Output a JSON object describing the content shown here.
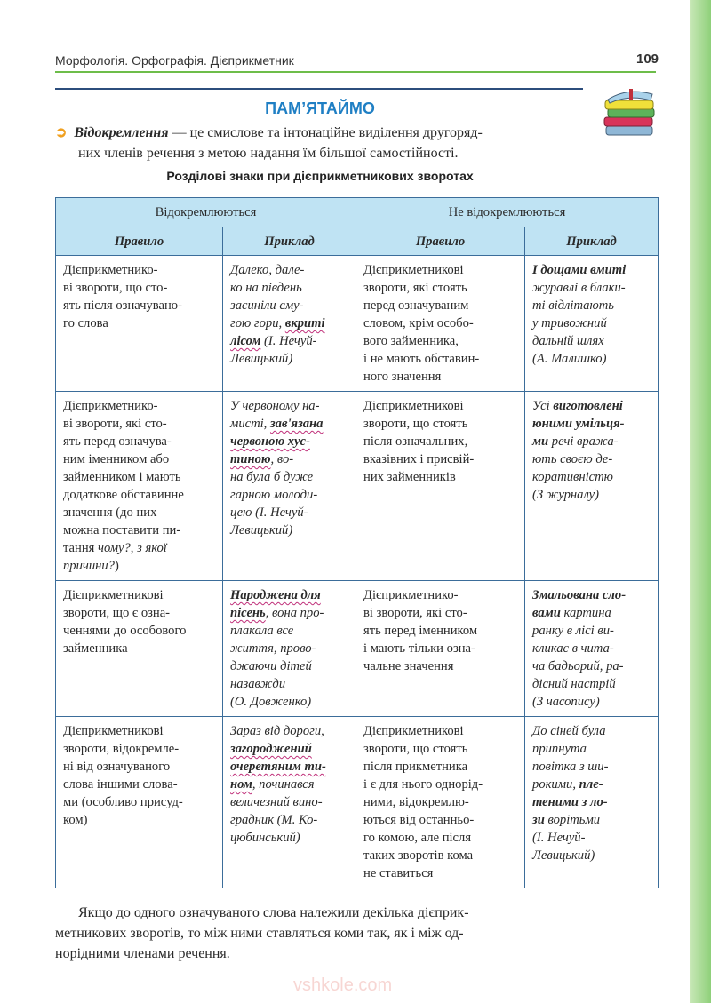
{
  "header": {
    "running_title": "Морфологія. Орфографія. Дієприкметник",
    "page_number": "109"
  },
  "remember_title": "ПАМ’ЯТАЙМО",
  "definition": {
    "term": "Відокремлення",
    "rest_line1": " — це смислове та інтонаційне виділення другоряд-",
    "line2": "них членів речення з метою надання їм більшої самостійності."
  },
  "table_title": "Розділові знаки при дієприкметникових зворотах",
  "table": {
    "groups": [
      "Відокремлюються",
      "Не відокремлюються"
    ],
    "subheaders": [
      "Правило",
      "Приклад",
      "Правило",
      "Приклад"
    ],
    "rows": [
      [
        [
          "Дієприкметнико-",
          "ві звороти, що сто-",
          "ять після означувано-",
          "го слова"
        ],
        [
          "Далеко, дале-",
          "ко на південь",
          "засиніли сму-",
          [
            {
              "t": "гою гори, "
            },
            {
              "t": "вкриті",
              "s": "u"
            }
          ],
          [
            {
              "t": "лісом",
              "s": "u"
            },
            {
              "t": " (І. Нечуй-"
            }
          ],
          "Левицький)"
        ],
        [
          "Дієприкметникові",
          "звороти, які стоять",
          "перед означуваним",
          "словом, крім особо-",
          "вого займенника,",
          "і не мають обставин-",
          "ного значення"
        ],
        [
          [
            {
              "t": "І дощами вмиті",
              "s": "b"
            }
          ],
          "журавлі в блаки-",
          "ті відлітають",
          "у тривожний",
          "дальній шлях",
          "(А. Малишко)"
        ]
      ],
      [
        [
          "Дієприкметнико-",
          "ві звороти, які сто-",
          "ять перед означува-",
          "ним іменником або",
          "займенником і мають",
          "додаткове обставинне",
          "значення (до них",
          "можна поставити пи-",
          [
            {
              "t": "тання "
            },
            {
              "t": "чому?, з якої",
              "s": "i"
            }
          ],
          [
            {
              "t": "причини?",
              "s": "i"
            },
            {
              "t": ")"
            }
          ]
        ],
        [
          "У червоному на-",
          [
            {
              "t": "мисті, "
            },
            {
              "t": "зав'язана",
              "s": "u"
            }
          ],
          [
            {
              "t": "червоною хус-",
              "s": "u"
            }
          ],
          [
            {
              "t": "тиною",
              "s": "u"
            },
            {
              "t": ", во-"
            }
          ],
          "на була б дуже",
          "гарною молоди-",
          "цею (І. Нечуй-",
          "Левицький)"
        ],
        [
          "Дієприкметникові",
          "звороти, що стоять",
          "після означальних,",
          "вказівних і присвій-",
          "них займенників"
        ],
        [
          [
            {
              "t": "Усі "
            },
            {
              "t": "виготовлені",
              "s": "b"
            }
          ],
          [
            {
              "t": "юними умільця-",
              "s": "b"
            }
          ],
          [
            {
              "t": "ми",
              "s": "b"
            },
            {
              "t": " речі вража-"
            }
          ],
          "ють своєю де-",
          "коративністю",
          "(З журналу)"
        ]
      ],
      [
        [
          "Дієприкметникові",
          "звороти, що є озна-",
          "ченнями до особового",
          "займенника"
        ],
        [
          [
            {
              "t": "Народжена для",
              "s": "u"
            }
          ],
          [
            {
              "t": "пісень",
              "s": "u"
            },
            {
              "t": ", вона про-"
            }
          ],
          "плакала все",
          "життя, прово-",
          "джаючи дітей",
          "назавжди",
          "(О. Довженко)"
        ],
        [
          "Дієприкметнико-",
          "ві звороти, які сто-",
          "ять перед іменником",
          "і мають тільки озна-",
          "чальне значення"
        ],
        [
          [
            {
              "t": "Змальована сло-",
              "s": "b"
            }
          ],
          [
            {
              "t": "вами",
              "s": "b"
            },
            {
              "t": " картина"
            }
          ],
          "ранку в лісі ви-",
          "кликає в чита-",
          "ча бадьорий, ра-",
          "дісний настрій",
          "(З часопису)"
        ]
      ],
      [
        [
          "Дієприкметникові",
          "звороти, відокремле-",
          "ні від означуваного",
          "слова іншими слова-",
          "ми (особливо присуд-",
          "ком)"
        ],
        [
          "Зараз від дороги,",
          [
            {
              "t": "загороджений",
              "s": "u"
            }
          ],
          [
            {
              "t": "очеретяним ти-",
              "s": "u"
            }
          ],
          [
            {
              "t": "ном",
              "s": "u"
            },
            {
              "t": ", починався"
            }
          ],
          "величезний вино-",
          "градник (М. Ко-",
          "цюбинський)"
        ],
        [
          "Дієприкметникові",
          "звороти, що стоять",
          "після прикметника",
          "і є для нього однорід-",
          "ними, відокремлю-",
          "ються від останньо-",
          "го комою, але після",
          "таких зворотів кома",
          "не ставиться"
        ],
        [
          "До сіней була",
          "припнута",
          "повітка з ши-",
          [
            {
              "t": "рокими, "
            },
            {
              "t": "пле-",
              "s": "b"
            }
          ],
          [
            {
              "t": "теними з ло-",
              "s": "b"
            }
          ],
          [
            {
              "t": "зи",
              "s": "b"
            },
            {
              "t": " ворітьми"
            }
          ],
          "(І. Нечуй-",
          "Левицький)"
        ]
      ]
    ]
  },
  "closing_paragraph": [
    "Якщо до одного означуваного слова належили декілька дієприк-",
    "метникових зворотів, то між ними ставляться коми так, як і між од-",
    "норідними членами речення."
  ],
  "watermark": "vshkole.com",
  "colors": {
    "accent_blue": "#1f7fc4",
    "table_border": "#3b6d9a",
    "header_fill": "#bfe3f3",
    "green_rule": "#6dbd4a",
    "wavy_underline": "#c0307a"
  },
  "icons": {
    "bullet": "arrow-bullet-icon",
    "books": "books-stack-icon"
  }
}
